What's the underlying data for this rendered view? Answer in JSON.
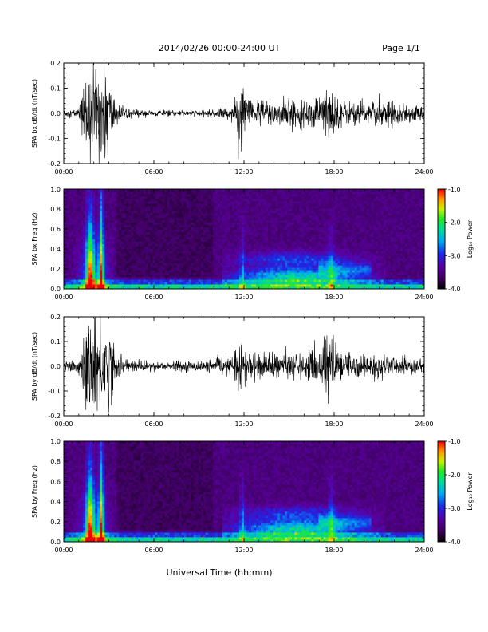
{
  "header": {
    "title": "2014/02/26  00:00-24:00 UT",
    "page": "Page 1/1"
  },
  "xlabel": "Universal Time (hh:mm)",
  "colorbar_label": "Log₁₀ Power",
  "chart_data": [
    {
      "type": "line",
      "ylabel": "SPA bx dB/dt (nT/sec)",
      "ylim": [
        -0.2,
        0.2
      ],
      "xlim": [
        "00:00",
        "24:00"
      ],
      "x_ticks": [
        "00:00",
        "06:00",
        "12:00",
        "18:00",
        "24:00"
      ],
      "y_ticks": [
        "-0.2",
        "-0.1",
        "0.0",
        "0.1",
        "0.2"
      ],
      "envelope": {
        "x_hours": [
          0,
          1,
          1.6,
          1.9,
          2.4,
          2.9,
          3.5,
          4,
          6,
          8,
          10,
          11,
          11.5,
          11.8,
          12.1,
          12.6,
          13,
          14,
          15,
          16,
          17,
          17.6,
          18,
          18.3,
          19,
          20,
          21,
          22,
          23,
          24
        ],
        "amplitude": [
          0.015,
          0.02,
          0.2,
          0.2,
          0.2,
          0.2,
          0.05,
          0.02,
          0.012,
          0.012,
          0.015,
          0.03,
          0.06,
          0.16,
          0.08,
          0.05,
          0.06,
          0.06,
          0.06,
          0.05,
          0.07,
          0.12,
          0.09,
          0.06,
          0.05,
          0.05,
          0.05,
          0.045,
          0.04,
          0.03
        ]
      }
    },
    {
      "type": "heatmap",
      "ylabel": "SPA bx Freq (Hz)",
      "ylim": [
        0.0,
        1.0
      ],
      "xlim": [
        "00:00",
        "24:00"
      ],
      "x_ticks": [
        "00:00",
        "06:00",
        "12:00",
        "18:00",
        "24:00"
      ],
      "y_ticks": [
        "0.0",
        "0.2",
        "0.4",
        "0.6",
        "0.8",
        "1.0"
      ],
      "colorbar": {
        "ticks": [
          "-1.0",
          "-2.0",
          "-3.0",
          "-4.0"
        ],
        "range": [
          -4.0,
          -1.0
        ]
      }
    },
    {
      "type": "line",
      "ylabel": "SPA by dB/dt (nT/sec)",
      "ylim": [
        -0.2,
        0.2
      ],
      "xlim": [
        "00:00",
        "24:00"
      ],
      "x_ticks": [
        "00:00",
        "06:00",
        "12:00",
        "18:00",
        "24:00"
      ],
      "y_ticks": [
        "-0.2",
        "-0.1",
        "0.0",
        "0.1",
        "0.2"
      ],
      "envelope": {
        "x_hours": [
          0,
          1,
          1.6,
          1.9,
          2.4,
          2.9,
          3.5,
          4,
          6,
          8,
          10,
          11,
          11.5,
          11.8,
          12.1,
          12.6,
          13,
          14,
          15,
          16,
          17,
          17.6,
          18,
          18.3,
          19,
          20,
          21,
          22,
          23,
          24
        ],
        "amplitude": [
          0.02,
          0.03,
          0.2,
          0.2,
          0.2,
          0.2,
          0.06,
          0.03,
          0.02,
          0.02,
          0.025,
          0.035,
          0.06,
          0.13,
          0.08,
          0.05,
          0.05,
          0.05,
          0.05,
          0.05,
          0.08,
          0.16,
          0.12,
          0.07,
          0.05,
          0.05,
          0.045,
          0.04,
          0.04,
          0.03
        ]
      }
    },
    {
      "type": "heatmap",
      "ylabel": "SPA by Freq (Hz)",
      "ylim": [
        0.0,
        1.0
      ],
      "xlim": [
        "00:00",
        "24:00"
      ],
      "x_ticks": [
        "00:00",
        "06:00",
        "12:00",
        "18:00",
        "24:00"
      ],
      "y_ticks": [
        "0.0",
        "0.2",
        "0.4",
        "0.6",
        "0.8",
        "1.0"
      ],
      "colorbar": {
        "ticks": [
          "-1.0",
          "-2.0",
          "-3.0",
          "-4.0"
        ],
        "range": [
          -4.0,
          -1.0
        ]
      }
    }
  ]
}
